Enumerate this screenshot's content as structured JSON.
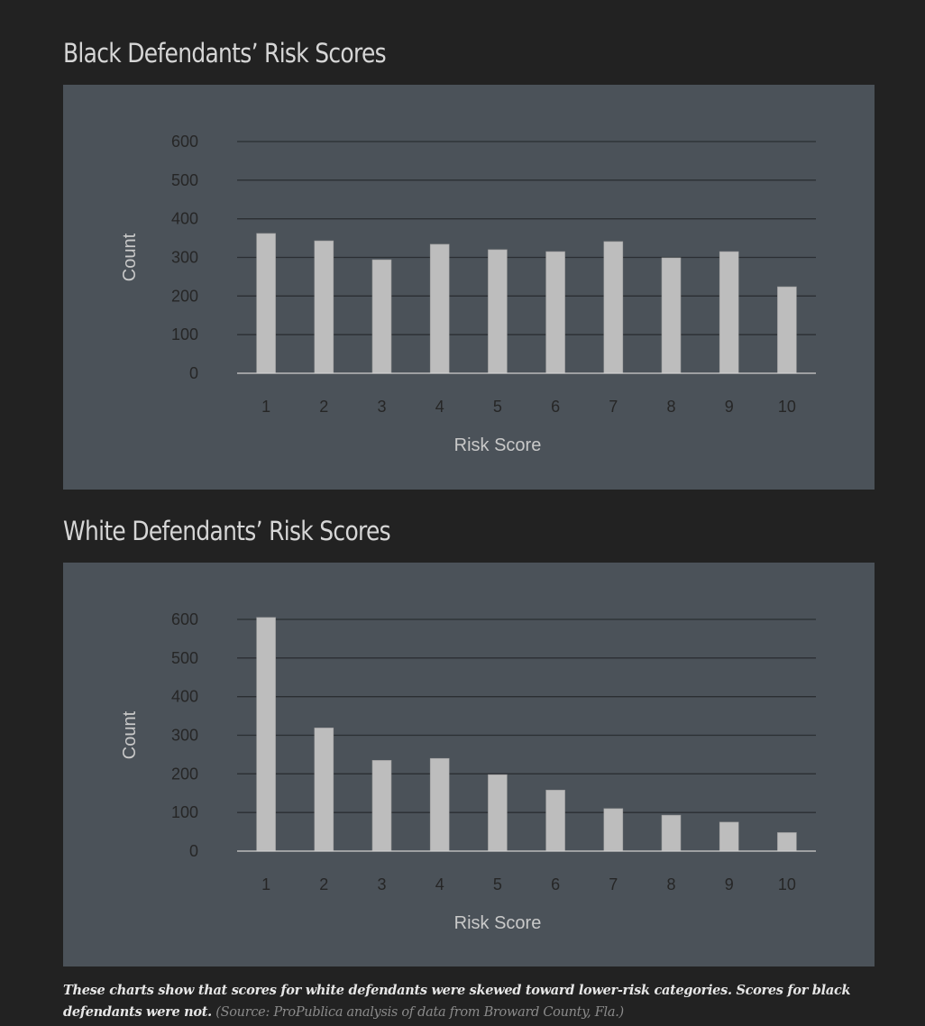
{
  "chart_data": [
    {
      "type": "bar",
      "title": "Black Defendants’ Risk Scores",
      "xlabel": "Risk Score",
      "ylabel": "Count",
      "categories": [
        "1",
        "2",
        "3",
        "4",
        "5",
        "6",
        "7",
        "8",
        "9",
        "10"
      ],
      "values": [
        362,
        343,
        294,
        334,
        320,
        315,
        341,
        299,
        315,
        224
      ],
      "yticks": [
        "0",
        "100",
        "200",
        "300",
        "400",
        "500",
        "600"
      ],
      "ylim": [
        0,
        600
      ],
      "grid": true,
      "legend": null
    },
    {
      "type": "bar",
      "title": "White Defendants’ Risk Scores",
      "xlabel": "Risk Score",
      "ylabel": "Count",
      "categories": [
        "1",
        "2",
        "3",
        "4",
        "5",
        "6",
        "7",
        "8",
        "9",
        "10"
      ],
      "values": [
        605,
        319,
        235,
        240,
        198,
        158,
        110,
        93,
        75,
        48
      ],
      "yticks": [
        "0",
        "100",
        "200",
        "300",
        "400",
        "500",
        "600"
      ],
      "ylim": [
        0,
        600
      ],
      "grid": true,
      "legend": null
    }
  ],
  "colors": {
    "page_bg": "#222222",
    "panel_bg": "#4b5259",
    "bar": "#bdbdbd",
    "gridline": "#2b2f33",
    "tick_text": "#262626",
    "axis_title": "#c9c9c9"
  },
  "caption": {
    "main": "These charts show that scores for white defendants were skewed toward lower-risk categories. Scores for black defendants were not.",
    "source": "(Source: ProPublica analysis of data from Broward County, Fla.)"
  }
}
